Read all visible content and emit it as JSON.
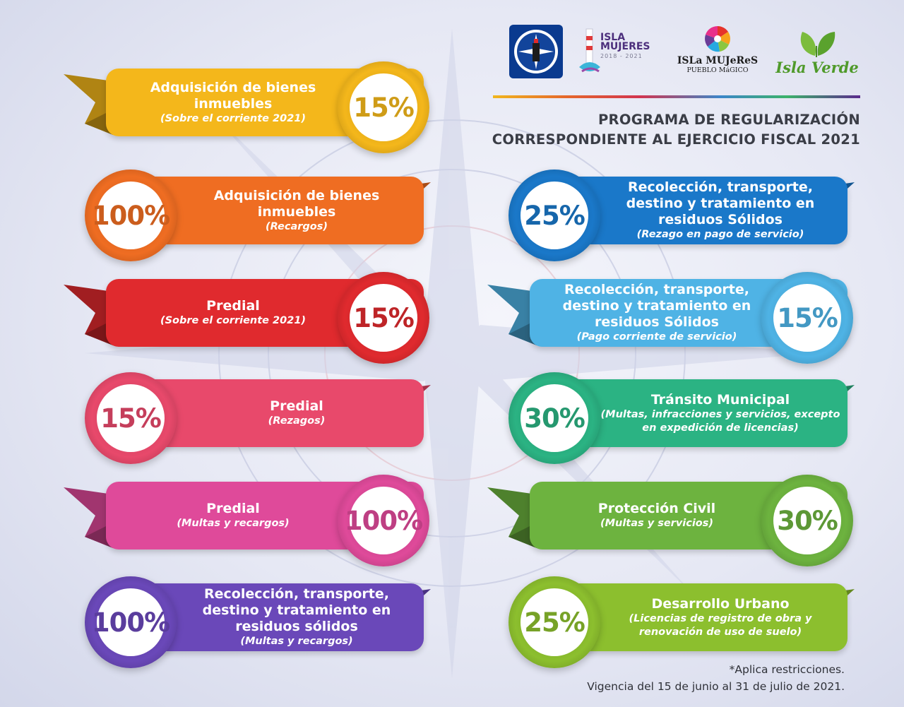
{
  "header": {
    "heading_line1": "PROGRAMA DE REGULARIZACIÓN",
    "heading_line2": "CORRESPONDIENTE AL EJERCICIO FISCAL 2021"
  },
  "logos": {
    "isla_mujeres_gobierno": {
      "line1": "ISLA",
      "line2": "MUJERES",
      "line3": "2018 - 2021"
    },
    "pueblo_magico": {
      "line1": "ISLa MUJeReS",
      "line2": "PUEBLO MáGICO"
    },
    "isla_verde": {
      "text": "Isla Verde"
    }
  },
  "colors": {
    "yellow": "#f4b71b",
    "orange": "#ef6d22",
    "red": "#e02a2e",
    "pink": "#e8496b",
    "magenta": "#df4a9a",
    "purple": "#6a48b9",
    "blue": "#1a78c9",
    "sky": "#4fb3e5",
    "teal": "#2bb383",
    "green": "#6db33f",
    "lime": "#8cbf2e"
  },
  "left": [
    {
      "percent": "15%",
      "title": "Adquisición de bienes inmuebles",
      "subtitle": "(Sobre el corriente 2021)",
      "color": "#f4b71b"
    },
    {
      "percent": "100%",
      "title": "Adquisición de bienes inmuebles",
      "subtitle": "(Recargos)",
      "color": "#ef6d22"
    },
    {
      "percent": "15%",
      "title": "Predial",
      "subtitle": "(Sobre el corriente 2021)",
      "color": "#e02a2e"
    },
    {
      "percent": "15%",
      "title": "Predial",
      "subtitle": "(Rezagos)",
      "color": "#e8496b"
    },
    {
      "percent": "100%",
      "title": "Predial",
      "subtitle": "(Multas y recargos)",
      "color": "#df4a9a"
    },
    {
      "percent": "100%",
      "title": "Recolección, transporte, destino y tratamiento en residuos sólidos",
      "subtitle": "(Multas y recargos)",
      "color": "#6a48b9"
    }
  ],
  "right": [
    {
      "percent": "25%",
      "title": "Recolección, transporte, destino y tratamiento en residuos Sólidos",
      "subtitle": "(Rezago en pago de servicio)",
      "color": "#1a78c9"
    },
    {
      "percent": "15%",
      "title": "Recolección, transporte, destino y tratamiento en residuos Sólidos",
      "subtitle": "(Pago corriente de servicio)",
      "color": "#4fb3e5"
    },
    {
      "percent": "30%",
      "title": "Tránsito Municipal",
      "subtitle": "(Multas, infracciones y servicios, excepto en expedición de licencias)",
      "color": "#2bb383"
    },
    {
      "percent": "30%",
      "title": "Protección Civil",
      "subtitle": "(Multas y servicios)",
      "color": "#6db33f"
    },
    {
      "percent": "25%",
      "title": "Desarrollo Urbano",
      "subtitle": "(Licencias de registro de obra y renovación de uso de suelo)",
      "color": "#8cbf2e"
    }
  ],
  "footer": {
    "restrictions": "*Aplica restricciones.",
    "validity": "Vigencia del 15 de junio al 31 de julio de 2021."
  }
}
